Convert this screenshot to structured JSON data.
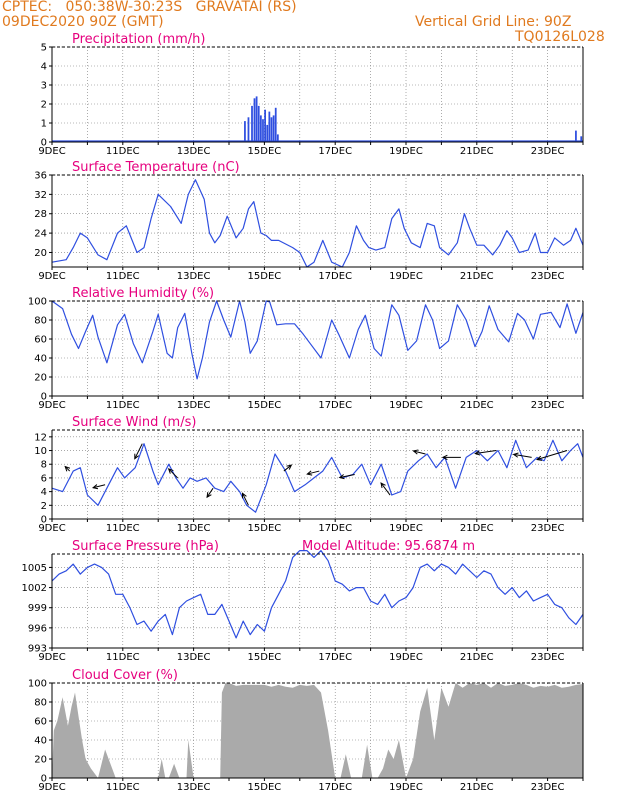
{
  "header": {
    "line1": "CPTEC:   050:38W-30:23S   GRAVATAI (RS)",
    "line2_left": "09DEC2020 90Z (GMT)",
    "line2_right": "Vertical Grid Line: 90Z",
    "line3_right": "TQ0126L028"
  },
  "colors": {
    "header": "#e07a1f",
    "title": "#e6007e",
    "series": "#2f4fe0",
    "cloud": "#aaaaaa",
    "wind_arrow": "#000000"
  },
  "x_ticks": [
    "9DEC",
    "11DEC",
    "13DEC",
    "15DEC",
    "17DEC",
    "19DEC",
    "21DEC",
    "23DEC"
  ],
  "extra_label": {
    "altitude": "Model Altitude: 95.6874 m"
  },
  "chart_data": [
    {
      "type": "bar",
      "title": "Precipitation (mm/h)",
      "x_unit": "days since 9DEC 00Z",
      "xlim": [
        0,
        15
      ],
      "ylim": [
        0,
        5
      ],
      "y_ticks": [
        0,
        1,
        2,
        3,
        4,
        5
      ],
      "x": [
        5.45,
        5.55,
        5.65,
        5.72,
        5.78,
        5.84,
        5.9,
        5.96,
        6.02,
        6.08,
        6.14,
        6.2,
        6.26,
        6.32,
        6.38,
        14.8,
        14.95
      ],
      "values": [
        1.1,
        1.3,
        1.9,
        2.3,
        2.4,
        1.9,
        1.4,
        1.2,
        1.7,
        0.9,
        1.6,
        1.3,
        1.4,
        1.8,
        0.4,
        0.6,
        0.3
      ]
    },
    {
      "type": "line",
      "title": "Surface Temperature (nC)",
      "xlim": [
        0,
        15
      ],
      "ylim": [
        17,
        36
      ],
      "y_ticks": [
        20,
        24,
        28,
        32,
        36
      ],
      "x": [
        0,
        0.4,
        0.6,
        0.8,
        1.0,
        1.3,
        1.55,
        1.85,
        2.1,
        2.4,
        2.6,
        2.8,
        3.0,
        3.35,
        3.65,
        3.85,
        4.05,
        4.3,
        4.45,
        4.6,
        4.75,
        4.95,
        5.2,
        5.4,
        5.55,
        5.7,
        5.9,
        6.05,
        6.2,
        6.4,
        6.8,
        7.0,
        7.2,
        7.4,
        7.65,
        7.9,
        8.2,
        8.4,
        8.6,
        8.8,
        8.95,
        9.15,
        9.4,
        9.6,
        9.8,
        9.95,
        10.15,
        10.4,
        10.6,
        10.8,
        10.95,
        11.2,
        11.45,
        11.65,
        11.8,
        12.0,
        12.2,
        12.45,
        12.65,
        12.85,
        13.0,
        13.2,
        13.45,
        13.65,
        13.8,
        14.0,
        14.2,
        14.45,
        14.65,
        14.8,
        15.0
      ],
      "values": [
        18,
        18.5,
        21,
        24,
        23,
        19.5,
        18.5,
        24,
        25.5,
        20,
        21,
        27,
        32,
        29.5,
        26,
        32,
        35,
        31,
        24,
        22,
        23.5,
        27.5,
        23,
        25,
        29,
        30.5,
        24,
        23.5,
        22.5,
        22.5,
        21,
        20,
        17,
        18,
        22.5,
        18,
        17,
        20,
        25.5,
        22.5,
        21,
        20.5,
        21,
        27,
        29,
        25,
        22,
        21,
        26,
        25.5,
        21,
        19.5,
        22,
        28,
        25,
        21.5,
        21.5,
        19.5,
        21.5,
        24.5,
        23,
        20,
        20.5,
        24,
        20,
        20,
        23,
        21.5,
        22.5,
        25,
        21.5
      ]
    },
    {
      "type": "line",
      "title": "Relative Humidity (%)",
      "xlim": [
        0,
        15
      ],
      "ylim": [
        0,
        100
      ],
      "y_ticks": [
        0,
        20,
        40,
        60,
        80,
        100
      ],
      "x": [
        0,
        0.3,
        0.55,
        0.75,
        0.95,
        1.15,
        1.3,
        1.55,
        1.85,
        2.05,
        2.3,
        2.55,
        2.85,
        3.0,
        3.25,
        3.4,
        3.55,
        3.75,
        3.95,
        4.1,
        4.25,
        4.45,
        4.65,
        4.85,
        5.05,
        5.3,
        5.45,
        5.6,
        5.8,
        6.05,
        6.15,
        6.35,
        6.6,
        6.85,
        7.1,
        7.3,
        7.6,
        7.9,
        8.1,
        8.4,
        8.65,
        8.85,
        9.1,
        9.3,
        9.6,
        9.8,
        10.05,
        10.3,
        10.55,
        10.75,
        10.95,
        11.2,
        11.45,
        11.7,
        11.95,
        12.15,
        12.35,
        12.6,
        12.9,
        13.15,
        13.35,
        13.6,
        13.8,
        14.1,
        14.35,
        14.55,
        14.8,
        15.0
      ],
      "values": [
        100,
        92,
        65,
        50,
        68,
        85,
        62,
        35,
        75,
        86,
        55,
        35,
        68,
        86,
        45,
        40,
        72,
        87,
        45,
        18,
        40,
        78,
        100,
        80,
        62,
        100,
        78,
        45,
        58,
        100,
        99,
        75,
        76,
        76,
        65,
        55,
        40,
        80,
        65,
        40,
        70,
        85,
        50,
        42,
        96,
        85,
        48,
        58,
        96,
        80,
        50,
        58,
        96,
        80,
        52,
        68,
        95,
        70,
        57,
        87,
        80,
        60,
        86,
        88,
        72,
        97,
        66,
        88
      ]
    },
    {
      "type": "line",
      "title": "Surface Wind (m/s)",
      "xlim": [
        0,
        15
      ],
      "ylim": [
        0,
        13
      ],
      "y_ticks": [
        0,
        2,
        4,
        6,
        8,
        10,
        12
      ],
      "x": [
        0,
        0.3,
        0.6,
        0.8,
        1.0,
        1.3,
        1.6,
        1.85,
        2.05,
        2.35,
        2.6,
        2.85,
        3.0,
        3.3,
        3.5,
        3.7,
        3.9,
        4.1,
        4.35,
        4.6,
        4.85,
        5.05,
        5.3,
        5.5,
        5.75,
        6.05,
        6.3,
        6.6,
        6.85,
        7.15,
        7.4,
        7.65,
        7.9,
        8.2,
        8.5,
        8.75,
        9.0,
        9.3,
        9.6,
        9.85,
        10.05,
        10.35,
        10.6,
        10.85,
        11.1,
        11.4,
        11.7,
        12.0,
        12.3,
        12.6,
        12.85,
        13.1,
        13.4,
        13.7,
        13.9,
        14.15,
        14.4,
        14.65,
        14.85,
        15.0
      ],
      "values": [
        4.5,
        4,
        7,
        7.5,
        3.5,
        2,
        5,
        7.5,
        6,
        7.5,
        11,
        7,
        5,
        8,
        6,
        4.5,
        6,
        5.5,
        6,
        4.5,
        4,
        5.5,
        4,
        2,
        1,
        5,
        9.5,
        7,
        4,
        5,
        6,
        7,
        9,
        6,
        6.5,
        8,
        5,
        8,
        3.5,
        4,
        7,
        8.5,
        9.5,
        7.5,
        9,
        4.5,
        9,
        10,
        8.5,
        10,
        7.5,
        11.5,
        7.5,
        9,
        8.5,
        11.5,
        8.5,
        10,
        11,
        9
      ]
    },
    {
      "type": "line",
      "title": "Surface Pressure (hPa)",
      "xlim": [
        0,
        15
      ],
      "ylim": [
        993,
        1007
      ],
      "y_ticks": [
        993,
        996,
        999,
        1002,
        1005
      ],
      "x": [
        0,
        0.2,
        0.4,
        0.6,
        0.8,
        1.0,
        1.2,
        1.4,
        1.6,
        1.8,
        2.0,
        2.2,
        2.4,
        2.6,
        2.8,
        3.0,
        3.2,
        3.4,
        3.6,
        3.8,
        4.0,
        4.2,
        4.4,
        4.6,
        4.8,
        5.0,
        5.2,
        5.4,
        5.6,
        5.8,
        6.0,
        6.2,
        6.4,
        6.6,
        6.8,
        7.0,
        7.2,
        7.4,
        7.6,
        7.8,
        8.0,
        8.2,
        8.4,
        8.6,
        8.8,
        9.0,
        9.2,
        9.4,
        9.6,
        9.8,
        10.0,
        10.2,
        10.4,
        10.6,
        10.8,
        11.0,
        11.2,
        11.4,
        11.6,
        11.8,
        12.0,
        12.2,
        12.4,
        12.6,
        12.8,
        13.0,
        13.2,
        13.4,
        13.6,
        13.8,
        14.0,
        14.2,
        14.4,
        14.6,
        14.8,
        15.0
      ],
      "values": [
        1003,
        1004,
        1004.5,
        1005.5,
        1004,
        1005,
        1005.5,
        1005,
        1004,
        1001,
        1001,
        999,
        996.5,
        997,
        995.5,
        997,
        998,
        995,
        999,
        1000,
        1000.5,
        1001,
        998,
        998,
        999.5,
        997,
        994.5,
        997,
        995,
        996.5,
        995.5,
        999,
        1001,
        1003,
        1006.5,
        1007.5,
        1007.5,
        1006.5,
        1007.5,
        1006,
        1003,
        1002.5,
        1001.5,
        1002,
        1002,
        1000,
        999.5,
        1001,
        999,
        1000,
        1000.5,
        1002,
        1005,
        1005.5,
        1004.5,
        1005.5,
        1005,
        1004,
        1005.5,
        1004.5,
        1003.5,
        1004.5,
        1004,
        1002,
        1001,
        1002,
        1000.5,
        1001.5,
        1000,
        1000.5,
        1001,
        999.5,
        999,
        997.5,
        996.5,
        998
      ]
    },
    {
      "type": "area",
      "title": "Cloud Cover (%)",
      "xlim": [
        0,
        15
      ],
      "ylim": [
        0,
        100
      ],
      "y_ticks": [
        0,
        20,
        40,
        60,
        80,
        100
      ],
      "x": [
        0,
        0.05,
        0.15,
        0.3,
        0.45,
        0.55,
        0.65,
        0.75,
        0.85,
        0.95,
        1.1,
        1.3,
        1.5,
        1.8,
        2.0,
        2.2,
        2.4,
        2.55,
        2.75,
        3.0,
        3.1,
        3.2,
        3.3,
        3.45,
        3.6,
        3.8,
        3.85,
        4.0,
        4.2,
        4.4,
        4.6,
        4.75,
        4.8,
        4.9,
        5.0,
        5.2,
        5.4,
        5.6,
        5.8,
        6.0,
        6.2,
        6.4,
        6.6,
        6.8,
        7.0,
        7.2,
        7.4,
        7.6,
        7.8,
        8.0,
        8.15,
        8.3,
        8.45,
        8.6,
        8.75,
        8.9,
        9.05,
        9.2,
        9.35,
        9.5,
        9.65,
        9.8,
        10.0,
        10.2,
        10.4,
        10.6,
        10.8,
        11.0,
        11.2,
        11.4,
        11.6,
        11.8,
        12.0,
        12.2,
        12.4,
        12.6,
        12.8,
        13.0,
        13.2,
        13.4,
        13.6,
        13.8,
        14.0,
        14.2,
        14.4,
        14.6,
        14.8,
        15.0
      ],
      "values": [
        0,
        50,
        60,
        85,
        55,
        75,
        90,
        65,
        40,
        20,
        10,
        0,
        30,
        0,
        0,
        0,
        0,
        0,
        0,
        0,
        20,
        0,
        0,
        15,
        0,
        0,
        40,
        0,
        0,
        0,
        0,
        0,
        90,
        100,
        100,
        97,
        98,
        98,
        98,
        98,
        96,
        98,
        96,
        95,
        98,
        97,
        98,
        90,
        50,
        0,
        0,
        25,
        0,
        0,
        0,
        35,
        0,
        0,
        10,
        30,
        20,
        40,
        0,
        20,
        70,
        95,
        40,
        95,
        75,
        100,
        95,
        100,
        98,
        100,
        95,
        100,
        97,
        98,
        100,
        98,
        95,
        97,
        96,
        98,
        95,
        96,
        98,
        99
      ]
    }
  ],
  "wind_vectors": {
    "time": [
      0.5,
      1.5,
      2.55,
      3.55,
      4.55,
      5.55,
      6.55,
      7.55,
      8.55,
      9.55,
      10.55,
      11.55,
      12.55,
      13.55,
      14.55
    ],
    "u": [
      -1.5,
      -4,
      -2.5,
      -3,
      -2,
      -2,
      2.5,
      -4,
      -5,
      -3,
      -4,
      -6,
      -7,
      -6,
      -10
    ],
    "v": [
      1.5,
      -1,
      -5,
      3,
      -3,
      4,
      2,
      -1,
      -1,
      4,
      1,
      0,
      -1,
      1,
      -3
    ]
  }
}
